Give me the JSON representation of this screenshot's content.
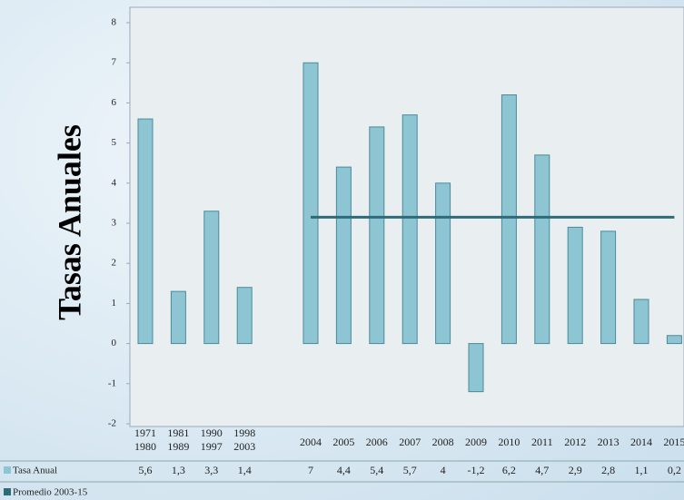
{
  "chart_data": {
    "type": "bar",
    "y_label": "Tasas Anuales",
    "categories": [
      [
        "1971",
        "1980"
      ],
      [
        "1981",
        "1989"
      ],
      [
        "1990",
        "1997"
      ],
      [
        "1998",
        "2003"
      ],
      null,
      "2004",
      "2005",
      "2006",
      "2007",
      "2008",
      "2009",
      "2010",
      "2011",
      "2012",
      "2013",
      "2014",
      "2015"
    ],
    "series": [
      {
        "name": "Tasa Anual",
        "type": "bar",
        "color": "#8ec5d3",
        "values": [
          5.6,
          1.3,
          3.3,
          1.4,
          null,
          7,
          4.4,
          5.4,
          5.7,
          4,
          -1.2,
          6.2,
          4.7,
          2.9,
          2.8,
          1.1,
          0.2
        ],
        "value_labels": [
          "5,6",
          "1,3",
          "3,3",
          "1,4",
          null,
          "7",
          "4,4",
          "5,4",
          "5,7",
          "4",
          "-1,2",
          "6,2",
          "4,7",
          "2,9",
          "2,8",
          "1,1",
          "0,2"
        ]
      },
      {
        "name": "Promedio 2003-15",
        "type": "line",
        "color": "#2e6b78",
        "values": [
          null,
          null,
          null,
          null,
          null,
          3.15,
          3.15,
          3.15,
          3.15,
          3.15,
          3.15,
          3.15,
          3.15,
          3.15,
          3.15,
          3.15,
          3.15
        ]
      }
    ],
    "ylim": [
      -2,
      8
    ],
    "yticks": [
      -2,
      -1,
      0,
      1,
      2,
      3,
      4,
      5,
      6,
      7,
      8
    ],
    "grid": false
  }
}
